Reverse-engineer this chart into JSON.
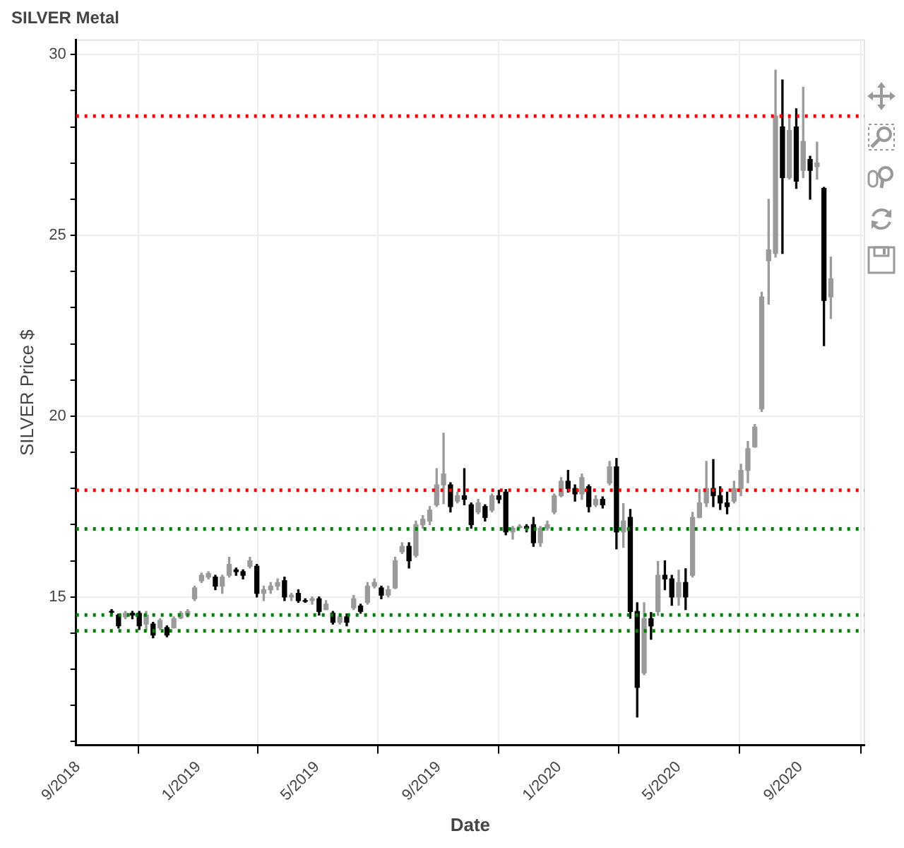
{
  "chart_data": {
    "type": "candlestick",
    "title": "SILVER Metal",
    "xlabel": "Date",
    "ylabel": "SILVER Price $",
    "x": [
      "2018-10-05",
      "2018-10-12",
      "2018-10-19",
      "2018-10-26",
      "2018-11-02",
      "2018-11-09",
      "2018-11-16",
      "2018-11-23",
      "2018-11-30",
      "2018-12-07",
      "2018-12-14",
      "2018-12-21",
      "2018-12-28",
      "2019-01-04",
      "2019-01-11",
      "2019-01-18",
      "2019-01-25",
      "2019-02-01",
      "2019-02-08",
      "2019-02-15",
      "2019-02-22",
      "2019-03-01",
      "2019-03-08",
      "2019-03-15",
      "2019-03-22",
      "2019-03-29",
      "2019-04-05",
      "2019-04-12",
      "2019-04-19",
      "2019-04-26",
      "2019-05-03",
      "2019-05-10",
      "2019-05-17",
      "2019-05-24",
      "2019-05-31",
      "2019-06-07",
      "2019-06-14",
      "2019-06-21",
      "2019-06-28",
      "2019-07-05",
      "2019-07-12",
      "2019-07-19",
      "2019-07-26",
      "2019-08-02",
      "2019-08-09",
      "2019-08-16",
      "2019-08-23",
      "2019-08-30",
      "2019-09-06",
      "2019-09-13",
      "2019-09-20",
      "2019-09-27",
      "2019-10-04",
      "2019-10-11",
      "2019-10-18",
      "2019-10-25",
      "2019-11-01",
      "2019-11-08",
      "2019-11-15",
      "2019-11-22",
      "2019-11-29",
      "2019-12-06",
      "2019-12-13",
      "2019-12-20",
      "2019-12-27",
      "2020-01-03",
      "2020-01-10",
      "2020-01-17",
      "2020-01-24",
      "2020-01-31",
      "2020-02-07",
      "2020-02-14",
      "2020-02-21",
      "2020-02-28",
      "2020-03-06",
      "2020-03-13",
      "2020-03-20",
      "2020-03-27",
      "2020-04-03",
      "2020-04-10",
      "2020-04-17",
      "2020-04-24",
      "2020-05-01",
      "2020-05-08",
      "2020-05-15",
      "2020-05-22",
      "2020-05-29",
      "2020-06-05",
      "2020-06-12",
      "2020-06-19",
      "2020-06-26",
      "2020-07-03",
      "2020-07-10",
      "2020-07-17",
      "2020-07-24",
      "2020-07-31",
      "2020-08-07",
      "2020-08-14",
      "2020-08-21",
      "2020-08-28",
      "2020-09-04",
      "2020-09-11",
      "2020-09-18",
      "2020-09-25",
      "2020-10-02"
    ],
    "ohlc": [
      [
        14.6,
        14.65,
        14.53,
        14.58
      ],
      [
        14.5,
        14.53,
        14.14,
        14.2
      ],
      [
        14.45,
        14.6,
        14.4,
        14.55
      ],
      [
        14.55,
        14.6,
        14.4,
        14.5
      ],
      [
        14.55,
        14.6,
        14.1,
        14.2
      ],
      [
        14.25,
        14.6,
        14.06,
        14.5
      ],
      [
        14.25,
        14.3,
        13.87,
        13.95
      ],
      [
        14.15,
        14.4,
        14.1,
        14.35
      ],
      [
        14.15,
        14.2,
        13.9,
        13.95
      ],
      [
        14.15,
        14.45,
        14.14,
        14.4
      ],
      [
        14.42,
        14.6,
        14.4,
        14.55
      ],
      [
        14.5,
        14.65,
        14.45,
        14.6
      ],
      [
        14.95,
        15.3,
        14.9,
        15.25
      ],
      [
        15.45,
        15.66,
        15.4,
        15.6
      ],
      [
        15.55,
        15.7,
        15.5,
        15.65
      ],
      [
        15.55,
        15.6,
        15.2,
        15.3
      ],
      [
        15.3,
        15.6,
        15.1,
        15.55
      ],
      [
        15.6,
        16.1,
        15.55,
        15.9
      ],
      [
        15.75,
        15.8,
        15.6,
        15.7
      ],
      [
        15.7,
        15.75,
        15.5,
        15.6
      ],
      [
        15.85,
        16.1,
        15.8,
        16.0
      ],
      [
        15.85,
        15.9,
        15.0,
        15.1
      ],
      [
        15.1,
        15.3,
        14.9,
        15.2
      ],
      [
        15.2,
        15.4,
        15.1,
        15.3
      ],
      [
        15.3,
        15.5,
        15.2,
        15.4
      ],
      [
        15.45,
        15.55,
        14.9,
        15.0
      ],
      [
        15.0,
        15.1,
        14.9,
        15.05
      ],
      [
        15.1,
        15.2,
        14.85,
        14.9
      ],
      [
        14.9,
        14.95,
        14.85,
        14.88
      ],
      [
        14.9,
        15.0,
        14.8,
        14.95
      ],
      [
        14.95,
        15.0,
        14.5,
        14.6
      ],
      [
        14.65,
        14.9,
        14.65,
        14.8
      ],
      [
        14.55,
        14.6,
        14.25,
        14.3
      ],
      [
        14.3,
        14.5,
        14.25,
        14.45
      ],
      [
        14.45,
        14.53,
        14.2,
        14.3
      ],
      [
        14.7,
        15.04,
        14.65,
        14.95
      ],
      [
        14.75,
        14.8,
        14.55,
        14.6
      ],
      [
        14.85,
        15.4,
        14.8,
        15.3
      ],
      [
        15.3,
        15.5,
        15.25,
        15.4
      ],
      [
        15.25,
        15.3,
        14.95,
        15.05
      ],
      [
        15.05,
        15.3,
        15.0,
        15.2
      ],
      [
        15.25,
        16.1,
        15.23,
        16.0
      ],
      [
        16.25,
        16.5,
        16.2,
        16.4
      ],
      [
        16.4,
        16.5,
        15.8,
        16.0
      ],
      [
        16.15,
        17.1,
        16.1,
        17.0
      ],
      [
        17.0,
        17.25,
        16.9,
        17.15
      ],
      [
        17.1,
        17.5,
        17.0,
        17.4
      ],
      [
        17.55,
        18.55,
        17.5,
        18.1
      ],
      [
        18.1,
        19.53,
        17.58,
        18.4
      ],
      [
        18.1,
        18.16,
        17.35,
        17.5
      ],
      [
        17.65,
        17.9,
        17.6,
        17.8
      ],
      [
        17.8,
        18.55,
        17.55,
        17.7
      ],
      [
        17.55,
        17.6,
        16.9,
        17.0
      ],
      [
        17.35,
        17.7,
        17.3,
        17.6
      ],
      [
        17.5,
        17.55,
        17.1,
        17.2
      ],
      [
        17.4,
        17.85,
        17.35,
        17.8
      ],
      [
        17.8,
        17.95,
        17.6,
        17.7
      ],
      [
        17.9,
        17.97,
        16.72,
        16.8
      ],
      [
        16.8,
        16.95,
        16.6,
        16.9
      ],
      [
        16.92,
        17.0,
        16.9,
        16.95
      ],
      [
        16.95,
        17.0,
        16.8,
        16.9
      ],
      [
        17.0,
        17.2,
        16.4,
        16.5
      ],
      [
        16.5,
        16.95,
        16.4,
        16.9
      ],
      [
        16.9,
        17.1,
        16.85,
        17.0
      ],
      [
        17.35,
        17.85,
        17.3,
        17.8
      ],
      [
        17.8,
        18.3,
        17.77,
        18.2
      ],
      [
        18.2,
        18.5,
        17.9,
        18.0
      ],
      [
        18.0,
        18.1,
        17.65,
        17.85
      ],
      [
        17.85,
        18.4,
        17.7,
        18.3
      ],
      [
        18.05,
        18.1,
        17.35,
        17.5
      ],
      [
        17.55,
        17.8,
        17.5,
        17.7
      ],
      [
        17.7,
        17.77,
        17.46,
        17.55
      ],
      [
        18.15,
        18.75,
        18.1,
        18.6
      ],
      [
        18.6,
        18.83,
        16.33,
        16.8
      ],
      [
        16.8,
        17.58,
        16.37,
        17.1
      ],
      [
        17.2,
        17.42,
        14.41,
        14.6
      ],
      [
        14.6,
        14.84,
        11.68,
        12.5
      ],
      [
        12.9,
        14.84,
        12.85,
        14.4
      ],
      [
        14.4,
        14.57,
        13.83,
        14.2
      ],
      [
        14.6,
        15.98,
        14.49,
        15.6
      ],
      [
        15.6,
        16.0,
        15.2,
        15.5
      ],
      [
        15.5,
        15.6,
        14.77,
        15.0
      ],
      [
        15.0,
        15.74,
        14.77,
        15.4
      ],
      [
        15.4,
        15.78,
        14.65,
        15.0
      ],
      [
        15.6,
        17.34,
        15.55,
        17.2
      ],
      [
        17.2,
        17.97,
        17.19,
        17.6
      ],
      [
        17.6,
        18.75,
        17.5,
        18.0
      ],
      [
        18.0,
        18.8,
        17.5,
        17.8
      ],
      [
        17.8,
        18.05,
        17.42,
        17.6
      ],
      [
        17.6,
        17.9,
        17.3,
        17.5
      ],
      [
        17.65,
        18.2,
        17.6,
        18.0
      ],
      [
        18.0,
        18.67,
        17.8,
        18.5
      ],
      [
        18.5,
        19.3,
        18.16,
        19.1
      ],
      [
        19.15,
        19.77,
        19.14,
        19.7
      ],
      [
        20.2,
        23.43,
        20.13,
        23.3
      ],
      [
        24.3,
        26.0,
        23.1,
        24.6
      ],
      [
        24.5,
        29.57,
        24.4,
        28.3
      ],
      [
        28.0,
        29.3,
        24.5,
        26.6
      ],
      [
        26.6,
        28.3,
        26.56,
        27.9
      ],
      [
        28.0,
        28.5,
        26.3,
        26.5
      ],
      [
        26.8,
        29.1,
        26.6,
        27.6
      ],
      [
        27.1,
        27.19,
        26.0,
        26.8
      ],
      [
        26.9,
        27.58,
        26.56,
        27.0
      ],
      [
        26.3,
        26.33,
        21.95,
        23.2
      ],
      [
        23.3,
        24.4,
        22.7,
        23.8
      ]
    ],
    "colors": [
      "#000000",
      "#000000",
      "#9a9a9a",
      "#000000",
      "#000000",
      "#9a9a9a",
      "#000000",
      "#9a9a9a",
      "#000000",
      "#9a9a9a",
      "#9a9a9a",
      "#9a9a9a",
      "#9a9a9a",
      "#9a9a9a",
      "#9a9a9a",
      "#000000",
      "#9a9a9a",
      "#9a9a9a",
      "#000000",
      "#000000",
      "#9a9a9a",
      "#000000",
      "#9a9a9a",
      "#9a9a9a",
      "#9a9a9a",
      "#000000",
      "#9a9a9a",
      "#000000",
      "#000000",
      "#9a9a9a",
      "#000000",
      "#9a9a9a",
      "#000000",
      "#9a9a9a",
      "#000000",
      "#9a9a9a",
      "#000000",
      "#9a9a9a",
      "#9a9a9a",
      "#000000",
      "#9a9a9a",
      "#9a9a9a",
      "#9a9a9a",
      "#000000",
      "#9a9a9a",
      "#9a9a9a",
      "#9a9a9a",
      "#9a9a9a",
      "#9a9a9a",
      "#000000",
      "#9a9a9a",
      "#000000",
      "#000000",
      "#9a9a9a",
      "#000000",
      "#9a9a9a",
      "#000000",
      "#000000",
      "#9a9a9a",
      "#9a9a9a",
      "#000000",
      "#000000",
      "#9a9a9a",
      "#9a9a9a",
      "#9a9a9a",
      "#9a9a9a",
      "#000000",
      "#000000",
      "#9a9a9a",
      "#000000",
      "#9a9a9a",
      "#000000",
      "#9a9a9a",
      "#000000",
      "#9a9a9a",
      "#000000",
      "#000000",
      "#9a9a9a",
      "#000000",
      "#9a9a9a",
      "#000000",
      "#000000",
      "#9a9a9a",
      "#000000",
      "#9a9a9a",
      "#9a9a9a",
      "#9a9a9a",
      "#000000",
      "#000000",
      "#000000",
      "#9a9a9a",
      "#9a9a9a",
      "#9a9a9a",
      "#9a9a9a",
      "#9a9a9a",
      "#9a9a9a",
      "#9a9a9a",
      "#000000",
      "#9a9a9a",
      "#000000",
      "#9a9a9a",
      "#000000",
      "#9a9a9a",
      "#000000",
      "#9a9a9a"
    ],
    "xlim": [
      "2018-08-30",
      "2020-11-05"
    ],
    "xticks": [
      {
        "value": "2018-09-01",
        "label": "9/2018"
      },
      {
        "value": "2019-01-01",
        "label": "1/2019"
      },
      {
        "value": "2019-05-01",
        "label": "5/2019"
      },
      {
        "value": "2019-09-01",
        "label": "9/2019"
      },
      {
        "value": "2020-01-01",
        "label": "1/2020"
      },
      {
        "value": "2020-05-01",
        "label": "5/2020"
      },
      {
        "value": "2020-09-01",
        "label": "9/2020"
      }
    ],
    "ylim": [
      10.9,
      30.4
    ],
    "yticks": [
      {
        "value": 11,
        "label": null
      },
      {
        "value": 12,
        "label": null
      },
      {
        "value": 13,
        "label": null
      },
      {
        "value": 14,
        "label": null
      },
      15,
      {
        "value": 16,
        "label": null
      },
      {
        "value": 17,
        "label": null
      },
      {
        "value": 18,
        "label": null
      },
      {
        "value": 19,
        "label": null
      },
      20,
      {
        "value": 21,
        "label": null
      },
      {
        "value": 22,
        "label": null
      },
      {
        "value": 23,
        "label": null
      },
      {
        "value": 24,
        "label": null
      },
      25,
      {
        "value": 26,
        "label": null
      },
      {
        "value": 27,
        "label": null
      },
      {
        "value": 28,
        "label": null
      },
      {
        "value": 29,
        "label": null
      },
      30
    ],
    "ref_lines": [
      {
        "axis": "y",
        "value": 28.3,
        "color": "#ff0000",
        "line_style": "dotted"
      },
      {
        "axis": "y",
        "value": 17.95,
        "color": "#ff0000",
        "line_style": "dotted"
      },
      {
        "axis": "y",
        "value": 16.88,
        "color": "#008000",
        "line_style": "dotted"
      },
      {
        "axis": "y",
        "value": 14.5,
        "color": "#008000",
        "line_style": "dotted"
      },
      {
        "axis": "y",
        "value": 14.06,
        "color": "#008000",
        "line_style": "dotted"
      }
    ],
    "grid": true,
    "legend": false
  }
}
